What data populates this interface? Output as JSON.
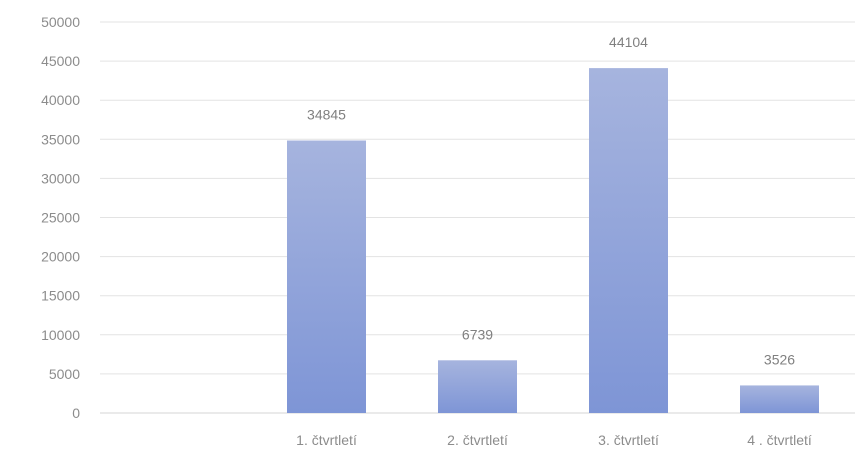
{
  "chart_data": {
    "type": "bar",
    "title": "",
    "xlabel": "",
    "ylabel": "",
    "categories": [
      "",
      "1. čtvrtletí",
      "2. čtvrtletí",
      "3. čtvrtletí",
      "4 . čtvrtletí"
    ],
    "values": [
      null,
      34845,
      6739,
      44104,
      3526
    ],
    "data_labels": [
      "",
      "34845",
      "6739",
      "44104",
      "3526"
    ],
    "ylim": [
      0,
      50000
    ],
    "yticks": [
      0,
      5000,
      10000,
      15000,
      20000,
      25000,
      30000,
      35000,
      40000,
      45000,
      50000
    ],
    "ytick_labels": [
      "0",
      "5000",
      "10000",
      "15000",
      "20000",
      "25000",
      "30000",
      "35000",
      "40000",
      "45000",
      "50000"
    ],
    "grid": true,
    "legend": "none",
    "colors": {
      "bar_top": "#a6b4de",
      "bar_bottom": "#7e95d6",
      "grid": "#e3e3e3",
      "text": "#8c8c8c"
    }
  }
}
